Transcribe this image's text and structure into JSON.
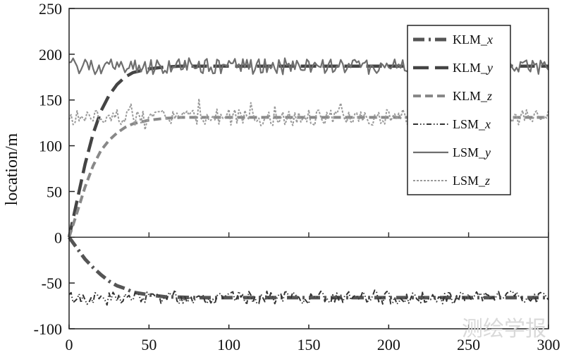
{
  "chart_data": {
    "type": "line",
    "title": "",
    "xlabel": "",
    "ylabel": "location/m",
    "xlim": [
      0,
      300
    ],
    "ylim": [
      -100,
      250
    ],
    "x_ticks": [
      "0",
      "50",
      "100",
      "150",
      "200",
      "250",
      "300"
    ],
    "y_ticks": [
      "250",
      "200",
      "150",
      "100",
      "50",
      "0",
      "-50",
      "-100"
    ],
    "grid": false,
    "zero_line": true,
    "legend_position": "top-right",
    "series": [
      {
        "name": "KLM_x",
        "color": "#555555",
        "style": "dashdot-heavy",
        "x": [
          0,
          5,
          10,
          15,
          20,
          25,
          30,
          35,
          40,
          50,
          60,
          80,
          100,
          150,
          200,
          250,
          300
        ],
        "y": [
          0,
          -12,
          -24,
          -33,
          -41,
          -48,
          -53,
          -56,
          -60,
          -63,
          -65,
          -66,
          -66,
          -66,
          -66,
          -66,
          -66
        ]
      },
      {
        "name": "KLM_y",
        "color": "#444444",
        "style": "longdash",
        "x": [
          0,
          5,
          10,
          15,
          20,
          25,
          30,
          35,
          40,
          50,
          60,
          70,
          80,
          100,
          150,
          200,
          250,
          300
        ],
        "y": [
          0,
          40,
          80,
          113,
          138,
          155,
          167,
          175,
          180,
          184,
          186,
          187,
          187,
          187,
          187,
          187,
          187,
          187
        ]
      },
      {
        "name": "KLM_z",
        "color": "#888888",
        "style": "dash",
        "x": [
          0,
          5,
          10,
          15,
          20,
          25,
          30,
          35,
          40,
          50,
          60,
          70,
          80,
          100,
          150,
          200,
          250,
          300
        ],
        "y": [
          0,
          27,
          55,
          78,
          95,
          106,
          114,
          120,
          124,
          128,
          130,
          131,
          131,
          131,
          131,
          131,
          131,
          131
        ]
      },
      {
        "name": "LSM_x",
        "color": "#333333",
        "style": "dashdotdot",
        "mean": -66,
        "noise": 7
      },
      {
        "name": "LSM_y",
        "color": "#6e6e6e",
        "style": "solid",
        "mean": 187,
        "noise": 9
      },
      {
        "name": "LSM_z",
        "color": "#9a9a9a",
        "style": "dot",
        "mean": 131,
        "noise": 9
      }
    ],
    "legend": [
      {
        "label": "KLM_",
        "sub": "x"
      },
      {
        "label": "KLM_",
        "sub": "y"
      },
      {
        "label": "KLM_",
        "sub": "z"
      },
      {
        "label": "LSM_",
        "sub": "x"
      },
      {
        "label": "LSM_",
        "sub": "y"
      },
      {
        "label": "LSM_",
        "sub": "z"
      }
    ]
  },
  "watermark": "测绘学报"
}
